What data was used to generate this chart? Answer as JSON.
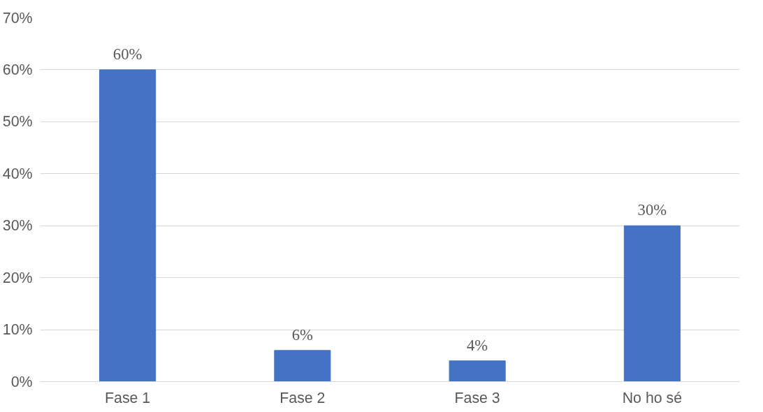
{
  "chart_data": {
    "type": "bar",
    "categories": [
      "Fase 1",
      "Fase 2",
      "Fase 3",
      "No ho sé"
    ],
    "values": [
      60,
      6,
      4,
      30
    ],
    "value_labels": [
      "60%",
      "6%",
      "4%",
      "30%"
    ],
    "color": "#4472c4",
    "ylim": [
      0,
      70
    ],
    "yticks": [
      {
        "value": 0,
        "label": "0%"
      },
      {
        "value": 10,
        "label": "10%"
      },
      {
        "value": 20,
        "label": "20%"
      },
      {
        "value": 30,
        "label": "30%"
      },
      {
        "value": 40,
        "label": "40%"
      },
      {
        "value": 50,
        "label": "50%"
      },
      {
        "value": 60,
        "label": "60%"
      },
      {
        "value": 70,
        "label": "70%"
      }
    ],
    "grid": "y"
  }
}
